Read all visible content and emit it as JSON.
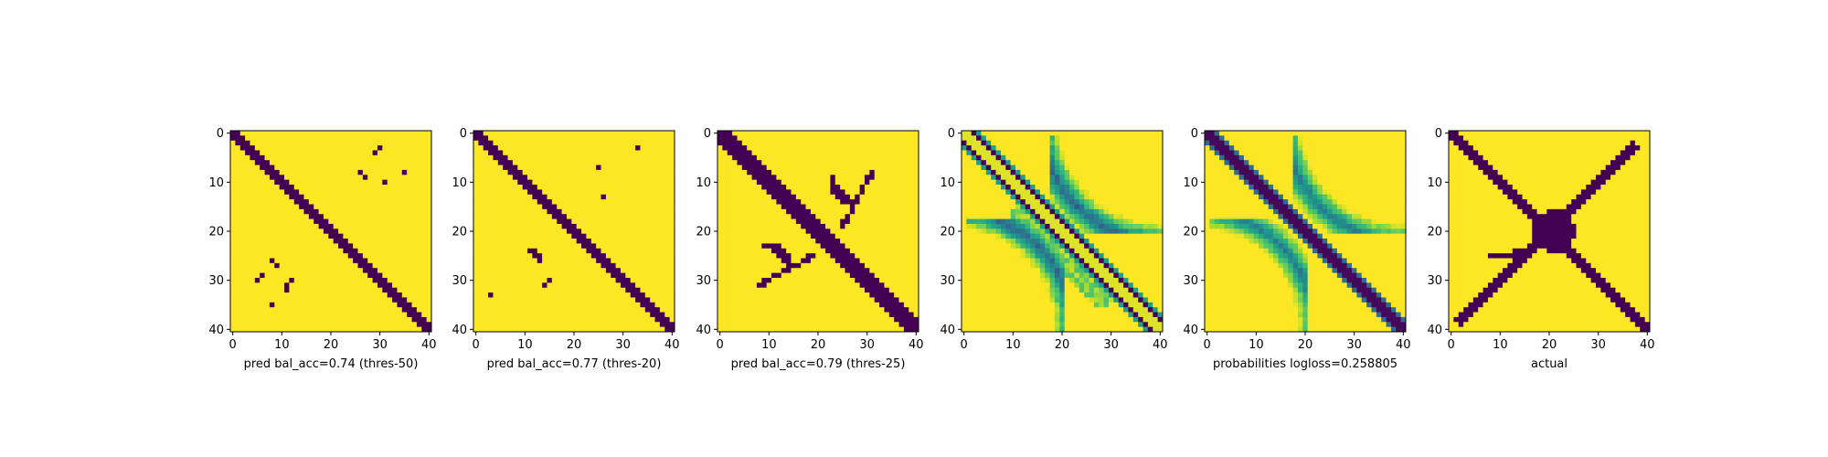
{
  "colors": {
    "dark": "#440154",
    "yellow": "#fde725",
    "colormap": "viridis"
  },
  "chart_data": [
    {
      "type": "heatmap",
      "xlabel": "pred bal_acc=0.74 (thres-50)",
      "xticks": [
        0,
        10,
        20,
        30,
        40
      ],
      "yticks": [
        0,
        10,
        20,
        30,
        40
      ],
      "grid_size": 41,
      "cells": "binary"
    },
    {
      "type": "heatmap",
      "xlabel": "pred bal_acc=0.77 (thres-20)",
      "xticks": [
        0,
        10,
        20,
        30,
        40
      ],
      "yticks": [
        0,
        10,
        20,
        30,
        40
      ],
      "grid_size": 41,
      "cells": "binary"
    },
    {
      "type": "heatmap",
      "xlabel": "pred bal_acc=0.79 (thres-25)",
      "xticks": [
        0,
        10,
        20,
        30,
        40
      ],
      "yticks": [
        0,
        10,
        20,
        30,
        40
      ],
      "grid_size": 41,
      "cells": "binary"
    },
    {
      "type": "heatmap",
      "xlabel": "",
      "xticks": [
        0,
        10,
        20,
        30,
        40
      ],
      "yticks": [
        0,
        10,
        20,
        30,
        40
      ],
      "grid_size": 41,
      "cells": "continuous"
    },
    {
      "type": "heatmap",
      "xlabel": "probabilities logloss=0.258805",
      "xticks": [
        0,
        10,
        20,
        30,
        40
      ],
      "yticks": [
        0,
        10,
        20,
        30,
        40
      ],
      "grid_size": 41,
      "cells": "continuous"
    },
    {
      "type": "heatmap",
      "xlabel": "actual",
      "xticks": [
        0,
        10,
        20,
        30,
        40
      ],
      "yticks": [
        0,
        10,
        20,
        30,
        40
      ],
      "grid_size": 41,
      "cells": "binary"
    }
  ]
}
